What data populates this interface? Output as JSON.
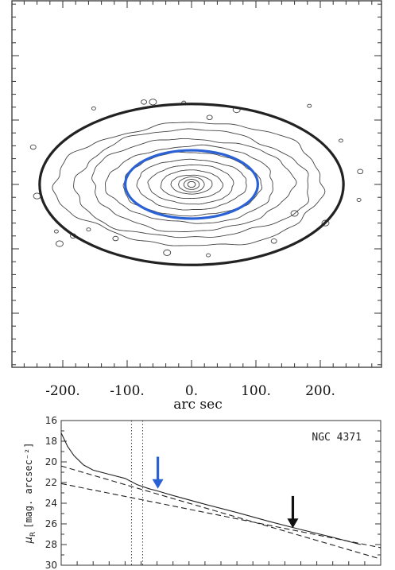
{
  "chart_data": [
    {
      "type": "contour",
      "xlabel": "arc sec",
      "xticks": [
        {
          "value": -200,
          "label": "-200."
        },
        {
          "value": -100,
          "label": "-100."
        },
        {
          "value": 0,
          "label": "0."
        },
        {
          "value": 100,
          "label": "100."
        },
        {
          "value": 200,
          "label": "200."
        }
      ],
      "xlim": [
        -280,
        285
      ],
      "ylim": [
        -290,
        290
      ],
      "isophote_count": 12,
      "isophote_semi_major_arcsec": [
        6,
        12,
        20,
        32,
        48,
        66,
        85,
        107,
        130,
        156,
        182,
        208
      ],
      "isophote_axis_ratio": 0.46,
      "fitted_ellipses": [
        {
          "name": "inner",
          "color": "#2a62d6",
          "center": [
            0,
            0
          ],
          "semi_major": 103,
          "semi_minor": 53
        },
        {
          "name": "outer",
          "color": "#222222",
          "center": [
            0,
            0
          ],
          "semi_major": 236,
          "semi_minor": 125
        }
      ]
    },
    {
      "type": "line",
      "title": "NGC 4371",
      "ylabel_main": "μ",
      "ylabel_sub": "R",
      "ylabel_rest": "[mag. arcsec⁻²]",
      "ylim": [
        16,
        30
      ],
      "yticks": [
        16,
        18,
        20,
        22,
        24,
        26,
        28,
        30
      ],
      "xlim": [
        0,
        400
      ],
      "x_minor_ticks": [
        0,
        20,
        40,
        60,
        80,
        100,
        120,
        140,
        160,
        180,
        200,
        220,
        240,
        260,
        280,
        300,
        320,
        340,
        360,
        380,
        400
      ],
      "series": [
        {
          "style": "solid",
          "x": [
            0,
            8,
            16,
            28,
            40,
            60,
            80,
            95,
            110,
            120,
            140,
            180,
            220,
            260,
            300,
            340,
            360,
            375
          ],
          "y": [
            17.2,
            18.5,
            19.4,
            20.3,
            20.8,
            21.2,
            21.6,
            22.2,
            22.6,
            22.8,
            23.25,
            24.1,
            24.9,
            25.75,
            26.55,
            27.3,
            27.7,
            28.0
          ]
        },
        {
          "style": "dashed",
          "x": [
            0,
            400
          ],
          "y": [
            20.4,
            29.4
          ]
        },
        {
          "style": "dashed",
          "x": [
            0,
            400
          ],
          "y": [
            22.1,
            28.3
          ]
        }
      ],
      "vlines": [
        {
          "style": "dotted",
          "x": 88
        },
        {
          "style": "dotted",
          "x": 102
        }
      ],
      "annotations": [
        {
          "type": "arrow",
          "color": "#2a62d6",
          "x": 121,
          "y_from": 19.5,
          "y_to": 22.6
        },
        {
          "type": "arrow",
          "color": "#111111",
          "x": 290,
          "y_from": 23.3,
          "y_to": 26.4
        }
      ]
    }
  ]
}
